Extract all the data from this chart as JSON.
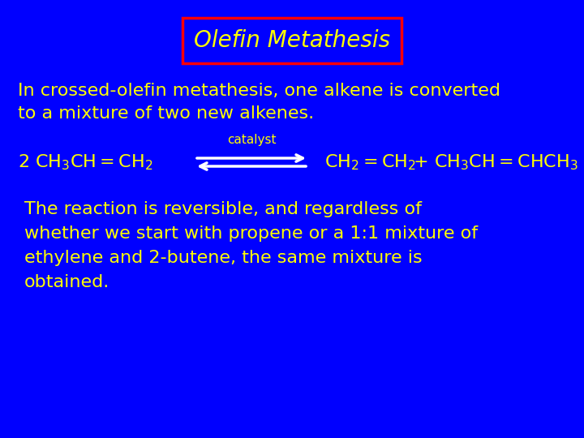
{
  "background_color": "#0000ff",
  "title_text": "Olefin Metathesis",
  "title_color": "#ffff00",
  "title_box_edge_color": "#ff0000",
  "title_font_style": "italic",
  "title_fontsize": 20,
  "body_text_color": "#ffff00",
  "body_fontsize": 16,
  "equation_fontsize": 16,
  "catalyst_fontsize": 11,
  "para1_line1": "In crossed-olefin metathesis, one alkene is converted",
  "para1_line2": "to a mixture of two new alkenes.",
  "para2_line1": "The reaction is reversible, and regardless of",
  "para2_line2": "whether we start with propene or a 1:1 mixture of",
  "para2_line3": "ethylene and 2-butene, the same mixture is",
  "para2_line4": "obtained."
}
